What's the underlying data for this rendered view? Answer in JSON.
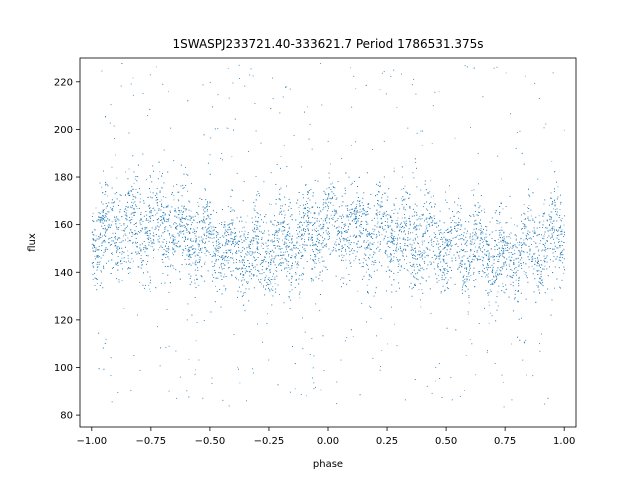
{
  "chart_data": {
    "type": "scatter",
    "title": "1SWASPJ233721.40-333621.7 Period 1786531.375s",
    "xlabel": "phase",
    "ylabel": "flux",
    "xlim": [
      -1.05,
      1.05
    ],
    "ylim": [
      75,
      230
    ],
    "xticks": [
      -1.0,
      -0.75,
      -0.5,
      -0.25,
      0.0,
      0.25,
      0.5,
      0.75,
      1.0
    ],
    "xtick_labels": [
      "−1.00",
      "−0.75",
      "−0.50",
      "−0.25",
      "0.00",
      "0.25",
      "0.50",
      "0.75",
      "1.00"
    ],
    "yticks": [
      80,
      100,
      120,
      140,
      160,
      180,
      200,
      220
    ],
    "ytick_labels": [
      "80",
      "100",
      "120",
      "140",
      "160",
      "180",
      "200",
      "220"
    ],
    "grid": false,
    "color": "#1f77b4",
    "series_profile": {
      "phase": [
        -1.0,
        -0.9,
        -0.75,
        -0.6,
        -0.5,
        -0.4,
        -0.25,
        -0.1,
        0.0,
        0.1,
        0.25,
        0.4,
        0.5,
        0.6,
        0.75,
        0.9,
        1.0
      ],
      "flux_center": [
        155,
        158,
        160,
        156,
        153,
        150,
        148,
        155,
        160,
        159,
        157,
        154,
        152,
        150,
        147,
        153,
        156
      ],
      "flux_core_spread": [
        [
          133,
          185
        ],
        [
          130,
          188
        ],
        [
          128,
          192
        ],
        [
          130,
          185
        ],
        [
          130,
          180
        ],
        [
          127,
          180
        ],
        [
          122,
          178
        ],
        [
          128,
          185
        ],
        [
          135,
          190
        ],
        [
          133,
          188
        ],
        [
          130,
          190
        ],
        [
          128,
          185
        ],
        [
          128,
          180
        ],
        [
          125,
          180
        ],
        [
          122,
          178
        ],
        [
          128,
          185
        ],
        [
          132,
          190
        ]
      ],
      "flux_outlier_range": [
        83,
        228
      ]
    }
  }
}
